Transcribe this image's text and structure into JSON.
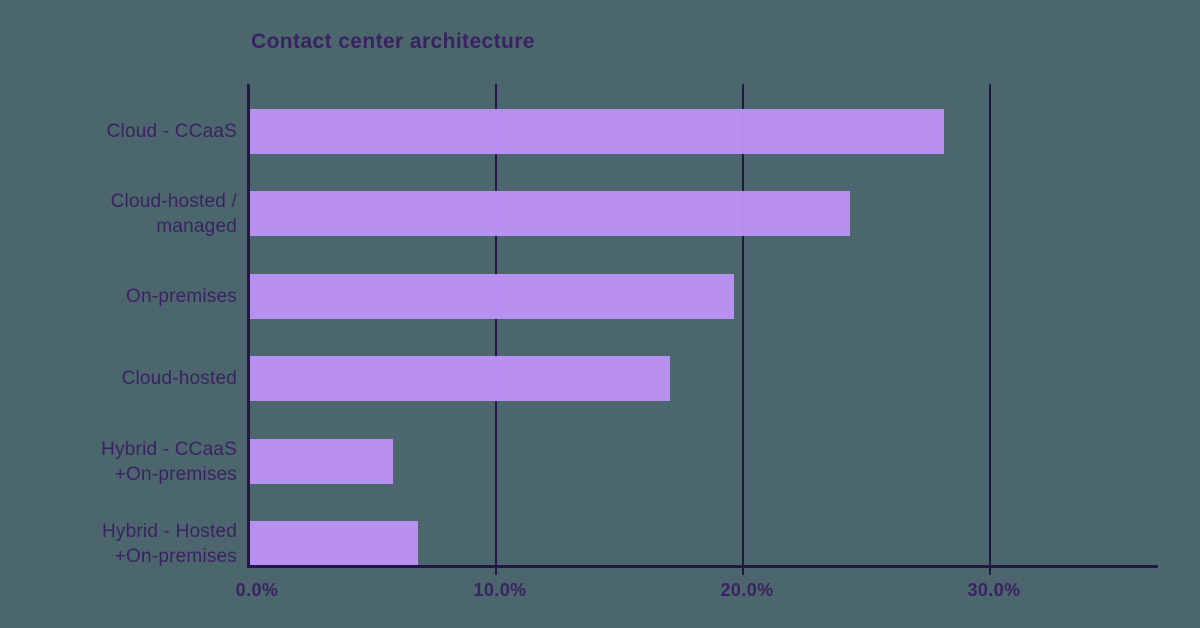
{
  "title": "Contact center architecture",
  "colors": {
    "background": "#4C666D",
    "bar": "#BE93F8",
    "axis": "#241447",
    "text": "#3A2262"
  },
  "chart_data": {
    "type": "bar",
    "orientation": "horizontal",
    "title": "Contact center architecture",
    "categories": [
      "Cloud - CCaaS",
      "Cloud-hosted /\nmanaged",
      "On-premises",
      "Cloud-hosted",
      "Hybrid - CCaaS\n+On-premises",
      "Hybrid - Hosted\n+On-premises"
    ],
    "values": [
      28.1,
      24.3,
      19.6,
      17.0,
      5.8,
      6.8
    ],
    "unit": "%",
    "xlabel": "",
    "ylabel": "",
    "xlim": [
      0,
      36.8
    ],
    "xticks": [
      0,
      10,
      20,
      30
    ],
    "xtick_labels": [
      "0.0%",
      "10.0%",
      "20.0%",
      "30.0%"
    ],
    "grid": true,
    "legend": false
  }
}
